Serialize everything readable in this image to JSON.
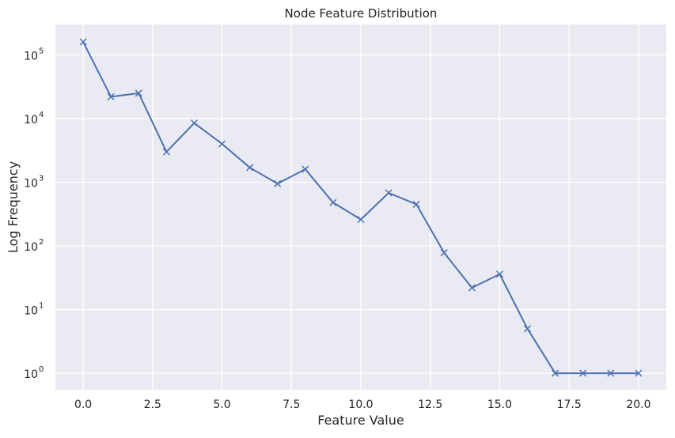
{
  "chart_data": {
    "type": "line",
    "title": "Node Feature Distribution",
    "xlabel": "Feature Value",
    "ylabel": "Log Frequency",
    "yscale": "log",
    "xlim": [
      -1,
      21
    ],
    "ylim": [
      0.55,
      300000
    ],
    "grid": true,
    "x_ticks": [
      0.0,
      2.5,
      5.0,
      7.5,
      10.0,
      12.5,
      15.0,
      17.5,
      20.0
    ],
    "x_tick_labels": [
      "0.0",
      "2.5",
      "5.0",
      "7.5",
      "10.0",
      "12.5",
      "15.0",
      "17.5",
      "20.0"
    ],
    "y_ticks": [
      {
        "value": 1,
        "base": "10",
        "exp": "0"
      },
      {
        "value": 10,
        "base": "10",
        "exp": "1"
      },
      {
        "value": 100,
        "base": "10",
        "exp": "2"
      },
      {
        "value": 1000,
        "base": "10",
        "exp": "3"
      },
      {
        "value": 10000,
        "base": "10",
        "exp": "4"
      },
      {
        "value": 100000,
        "base": "10",
        "exp": "5"
      }
    ],
    "series": [
      {
        "marker": "x",
        "color": "#4c72b0",
        "x": [
          0,
          1,
          2,
          3,
          4,
          5,
          6,
          7,
          8,
          9,
          10,
          11,
          12,
          13,
          14,
          15,
          16,
          17,
          18,
          19,
          20
        ],
        "y": [
          160000,
          22000,
          25000,
          3000,
          8500,
          4000,
          1700,
          950,
          1600,
          480,
          260,
          680,
          450,
          78,
          22,
          36,
          5,
          1,
          1,
          1,
          1
        ]
      }
    ],
    "colors": {
      "plot_background": "#eaeaf2",
      "grid": "#ffffff",
      "line": "#4c72b0"
    }
  }
}
